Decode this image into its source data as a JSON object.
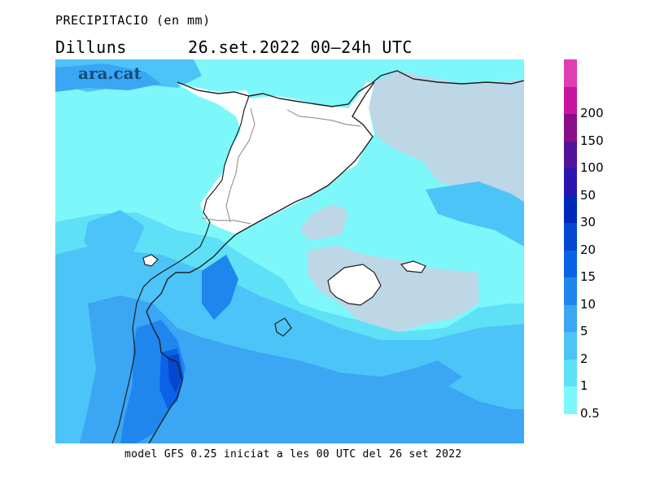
{
  "title": "PRECIPITACIO (en mm)",
  "subtitle": "Dilluns      26.set.2022 00–24h UTC",
  "brand": "ara.cat",
  "footer": "model GFS 0.25 iniciat a les 00 UTC del 26 set 2022",
  "legend": {
    "levels": [
      "0.5",
      "1",
      "2",
      "5",
      "10",
      "15",
      "20",
      "30",
      "50",
      "100",
      "150",
      "200"
    ],
    "colors": [
      "#7ef7fb",
      "#5ee1f7",
      "#4cc4f7",
      "#3aa6f4",
      "#1f86ee",
      "#0a63e6",
      "#0548cf",
      "#0028b8",
      "#2a15b0",
      "#52139a",
      "#8a0e8a",
      "#c8159f",
      "#e03fb4"
    ]
  },
  "colors": {
    "no_precip_sea": "#bdd7e7",
    "land_dry": "#ffffff",
    "brand": "#0f4d7a"
  }
}
